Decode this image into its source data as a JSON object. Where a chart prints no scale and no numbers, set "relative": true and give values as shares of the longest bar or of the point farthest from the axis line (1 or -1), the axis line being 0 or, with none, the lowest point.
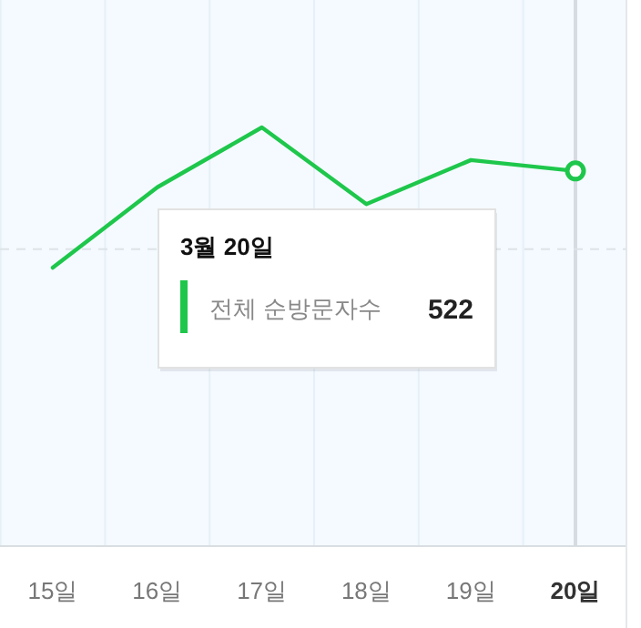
{
  "chart_data": {
    "type": "line",
    "relative": true,
    "categories": [
      "15일",
      "16일",
      "17일",
      "18일",
      "19일",
      "20일"
    ],
    "series": [
      {
        "name": "전체 순방문자수",
        "color": "#1ec74b",
        "values": [
          0.665,
          0.857,
          1,
          0.817,
          0.922,
          0.896
        ]
      }
    ],
    "annotations": [
      "3월 20일",
      "522"
    ],
    "ref_lines": [
      {
        "axis": "x",
        "value": "20일",
        "color": "#d5dbe0",
        "line_style": "solid"
      },
      {
        "axis": "y",
        "value": 0.709,
        "color": "#dde3e8",
        "line_style": "dashed"
      }
    ],
    "tick_labels": "x",
    "grid": "x",
    "marker": "none",
    "line_style": "solid",
    "legend": "center"
  }
}
